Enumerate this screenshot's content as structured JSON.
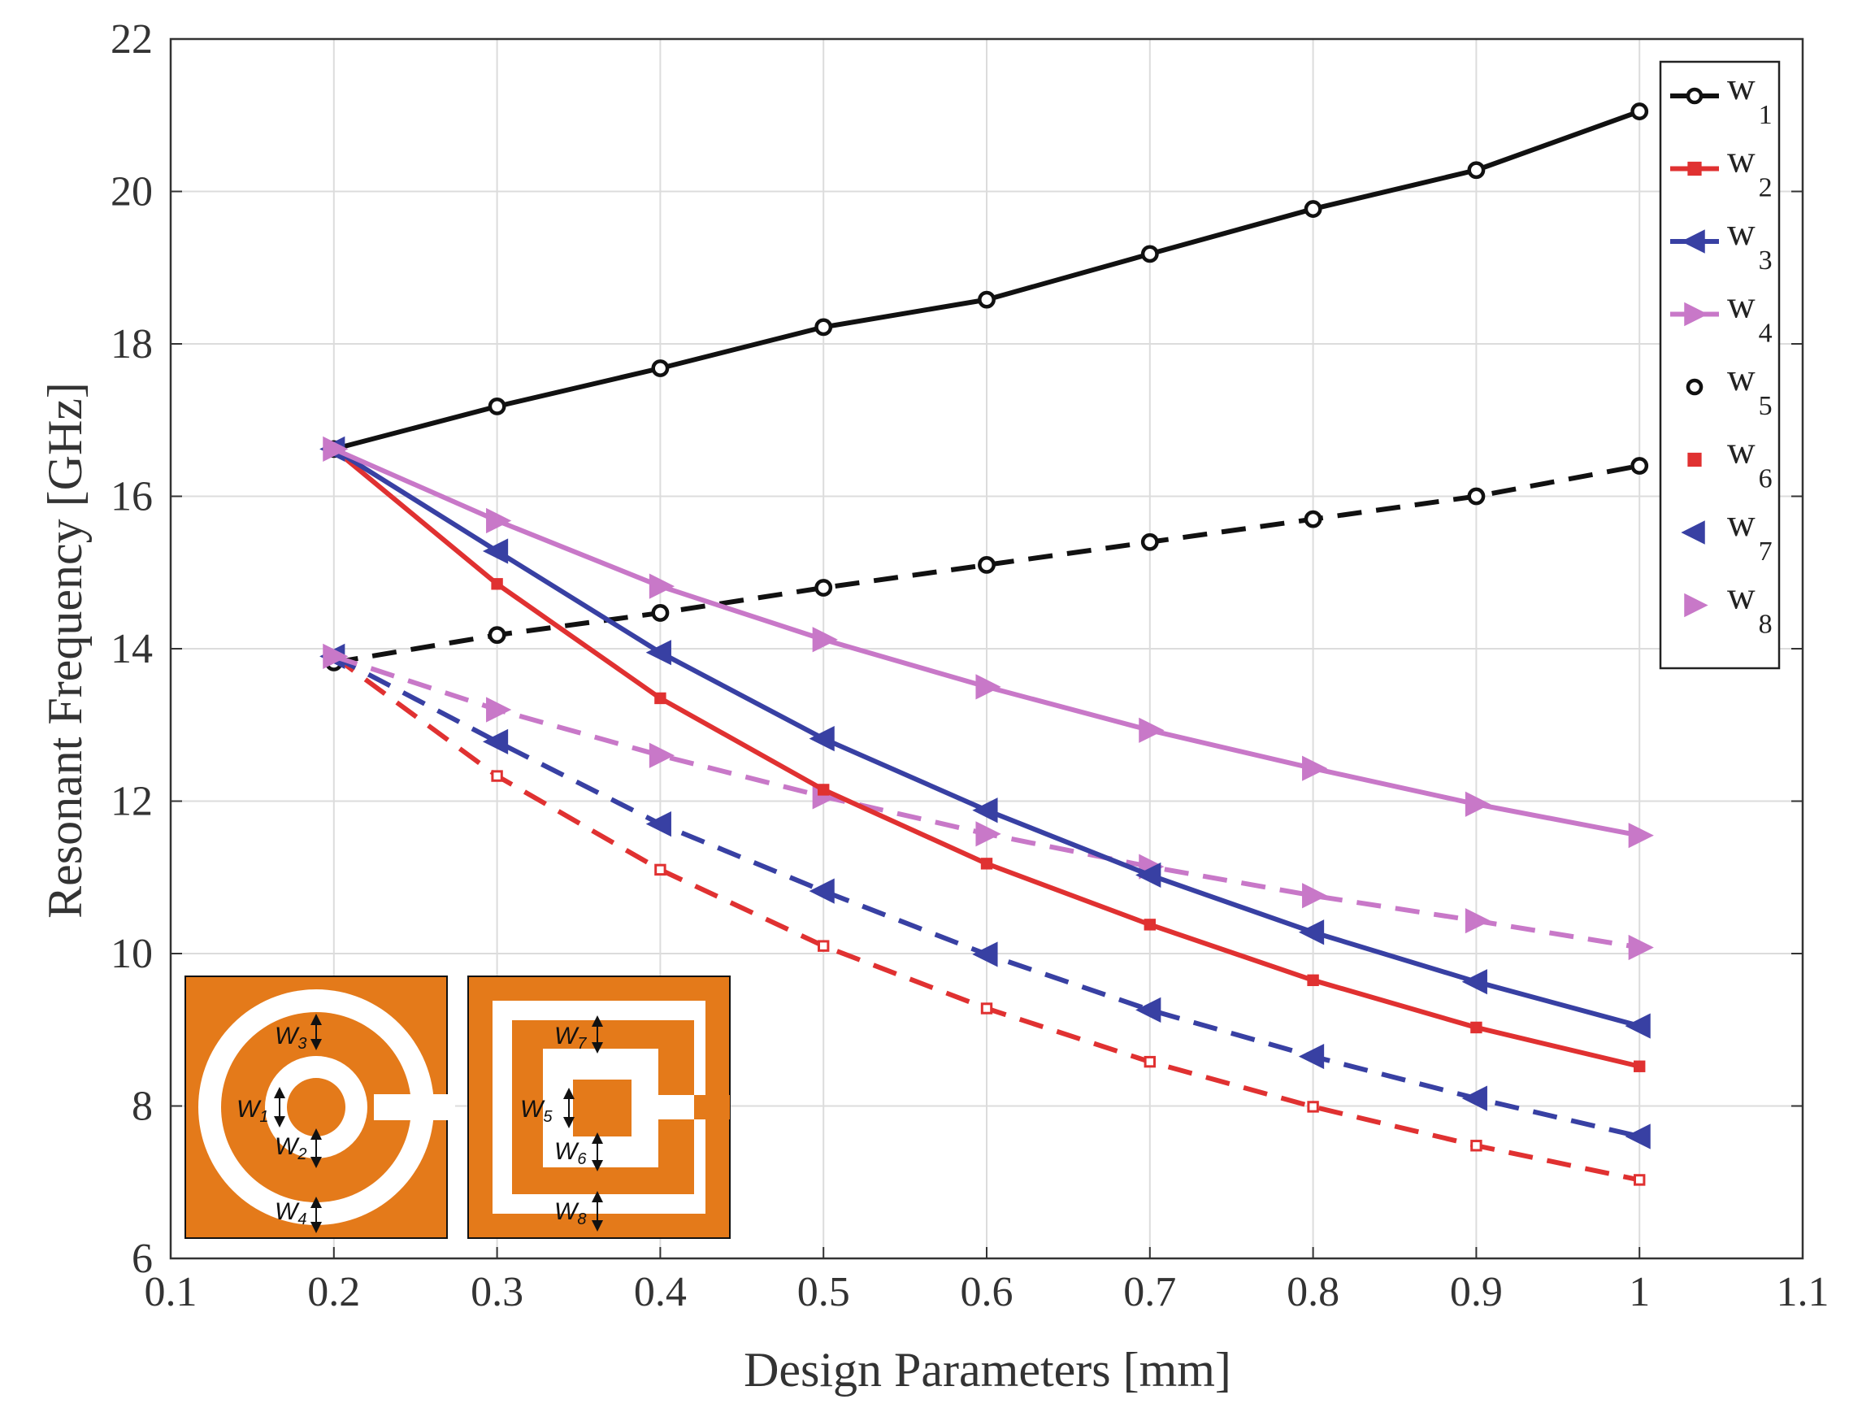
{
  "chart_data": {
    "type": "line",
    "xlabel": "Design Parameters [mm]",
    "ylabel": "Resonant Frequency [GHz]",
    "xlim": [
      0.1,
      1.1
    ],
    "ylim": [
      6,
      22
    ],
    "grid": true,
    "legend_position": "top-right",
    "x": [
      0.2,
      0.3,
      0.4,
      0.5,
      0.6,
      0.7,
      0.8,
      0.9,
      1.0
    ],
    "xticks": [
      "0.1",
      "0.2",
      "0.3",
      "0.4",
      "0.5",
      "0.6",
      "0.7",
      "0.8",
      "0.9",
      "1",
      "1.1"
    ],
    "yticks": [
      "6",
      "8",
      "10",
      "12",
      "14",
      "16",
      "18",
      "20",
      "22"
    ],
    "series": [
      {
        "name": "w",
        "sub": "1",
        "color": "#111111",
        "dash": false,
        "marker": "circle",
        "values": [
          16.62,
          17.18,
          17.68,
          18.22,
          18.58,
          19.18,
          19.77,
          20.28,
          21.05
        ]
      },
      {
        "name": "w",
        "sub": "2",
        "color": "#e03131",
        "dash": false,
        "marker": "square",
        "values": [
          16.62,
          14.85,
          13.35,
          12.15,
          11.18,
          10.38,
          9.65,
          9.03,
          8.52
        ]
      },
      {
        "name": "w",
        "sub": "3",
        "color": "#3840a3",
        "dash": false,
        "marker": "triangle-left",
        "values": [
          16.62,
          15.28,
          13.95,
          12.82,
          11.88,
          11.03,
          10.28,
          9.63,
          9.05
        ]
      },
      {
        "name": "w",
        "sub": "4",
        "color": "#c878c8",
        "dash": false,
        "marker": "triangle-right",
        "values": [
          16.62,
          15.68,
          14.82,
          14.12,
          13.5,
          12.93,
          12.43,
          11.96,
          11.55
        ]
      },
      {
        "name": "w",
        "sub": "5",
        "color": "#111111",
        "dash": true,
        "marker": "circle",
        "values": [
          13.82,
          14.18,
          14.47,
          14.8,
          15.1,
          15.4,
          15.7,
          16.0,
          16.4
        ]
      },
      {
        "name": "w",
        "sub": "6",
        "color": "#e03131",
        "dash": true,
        "marker": "square",
        "values": [
          13.9,
          12.33,
          11.1,
          10.1,
          9.28,
          8.58,
          7.99,
          7.48,
          7.03
        ]
      },
      {
        "name": "w",
        "sub": "7",
        "color": "#3840a3",
        "dash": true,
        "marker": "triangle-left",
        "values": [
          13.9,
          12.78,
          11.7,
          10.82,
          9.99,
          9.26,
          8.65,
          8.1,
          7.6
        ]
      },
      {
        "name": "w",
        "sub": "8",
        "color": "#c878c8",
        "dash": true,
        "marker": "triangle-right",
        "values": [
          13.9,
          13.2,
          12.6,
          12.06,
          11.57,
          11.14,
          10.76,
          10.43,
          10.08
        ]
      }
    ]
  },
  "inset": {
    "fill_color": "#e47a1a",
    "circular_labels": [
      {
        "main": "W",
        "sub": "3"
      },
      {
        "main": "W",
        "sub": "1"
      },
      {
        "main": "W",
        "sub": "2"
      },
      {
        "main": "W",
        "sub": "4"
      }
    ],
    "square_labels": [
      {
        "main": "W",
        "sub": "7"
      },
      {
        "main": "W",
        "sub": "5"
      },
      {
        "main": "W",
        "sub": "6"
      },
      {
        "main": "W",
        "sub": "8"
      }
    ]
  }
}
